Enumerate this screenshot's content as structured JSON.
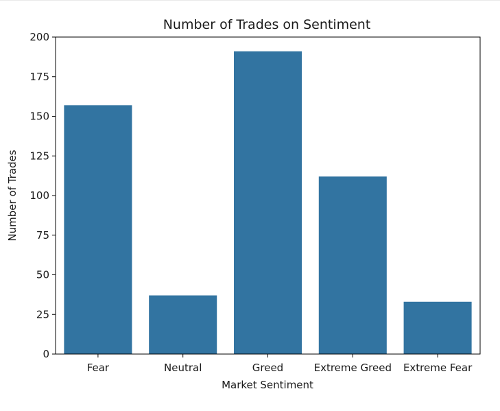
{
  "chart_data": {
    "type": "bar",
    "title": "Number of Trades on Sentiment",
    "xlabel": "Market Sentiment",
    "ylabel": "Number of Trades",
    "categories": [
      "Fear",
      "Neutral",
      "Greed",
      "Extreme Greed",
      "Extreme Fear"
    ],
    "values": [
      157,
      37,
      191,
      112,
      33
    ],
    "ylim": [
      0,
      200
    ],
    "yticks": [
      "0",
      "25",
      "50",
      "75",
      "100",
      "125",
      "150",
      "175",
      "200"
    ],
    "grid": false,
    "bar_color": "#3274a1"
  }
}
